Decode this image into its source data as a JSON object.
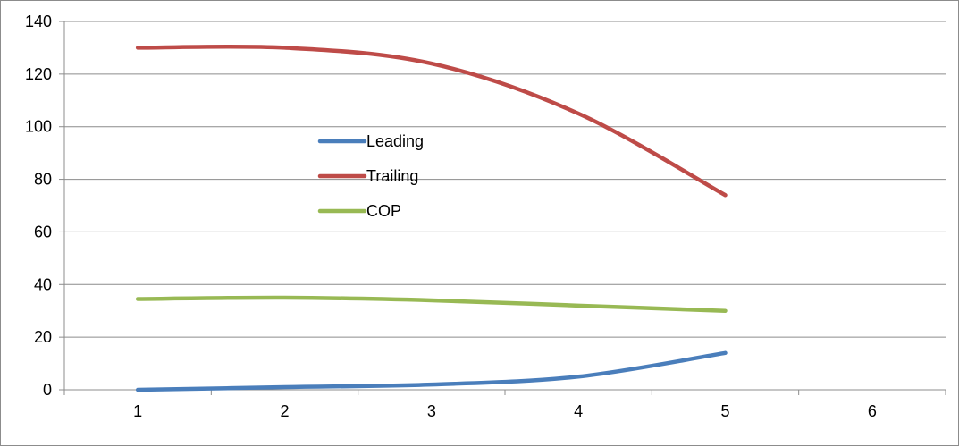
{
  "chart_data": {
    "type": "line",
    "x": [
      1,
      2,
      3,
      4,
      5
    ],
    "x_ticks": [
      "1",
      "2",
      "3",
      "4",
      "5",
      "6"
    ],
    "y_ticks": [
      "0",
      "20",
      "40",
      "60",
      "80",
      "100",
      "120",
      "140"
    ],
    "ylim": [
      0,
      140
    ],
    "xlim": [
      0.5,
      6.5
    ],
    "grid": "horizontal",
    "smooth": true,
    "legend_position": "center-left",
    "series": [
      {
        "name": "Leading",
        "color": "#4a7ebb",
        "values": [
          0,
          1,
          2,
          5,
          14
        ]
      },
      {
        "name": "Trailing",
        "color": "#be4b48",
        "values": [
          130,
          130,
          124,
          105,
          74
        ]
      },
      {
        "name": "COP",
        "color": "#98b954",
        "values": [
          34.5,
          35,
          34,
          32,
          30
        ]
      }
    ]
  }
}
